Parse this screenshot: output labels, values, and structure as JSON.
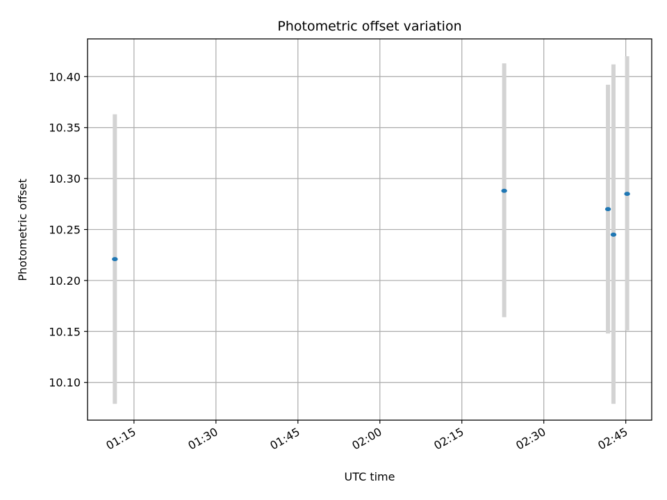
{
  "chart_data": {
    "type": "scatter",
    "title": "Photometric offset variation",
    "xlabel": "UTC time",
    "ylabel": "Photometric offset",
    "grid": true,
    "x_is_time": true,
    "xlim": [
      "01:06:30",
      "02:49:45"
    ],
    "ylim": [
      10.063,
      10.437
    ],
    "x_ticks": [
      "01:15",
      "01:30",
      "01:45",
      "02:00",
      "02:15",
      "02:30",
      "02:45"
    ],
    "y_ticks": [
      "10.10",
      "10.15",
      "10.20",
      "10.25",
      "10.30",
      "10.35",
      "10.40"
    ],
    "points": [
      {
        "x": "01:11:30",
        "y": 10.221,
        "lo": 10.079,
        "hi": 10.363
      },
      {
        "x": "02:22:45",
        "y": 10.288,
        "lo": 10.164,
        "hi": 10.413
      },
      {
        "x": "02:41:45",
        "y": 10.27,
        "lo": 10.148,
        "hi": 10.392
      },
      {
        "x": "02:42:45",
        "y": 10.245,
        "lo": 10.079,
        "hi": 10.412
      },
      {
        "x": "02:45:15",
        "y": 10.285,
        "lo": 10.151,
        "hi": 10.42
      }
    ],
    "colors": {
      "marker": "#1f77b4",
      "errorbar": "#d3d3d3",
      "grid": "#b0b0b0"
    }
  }
}
